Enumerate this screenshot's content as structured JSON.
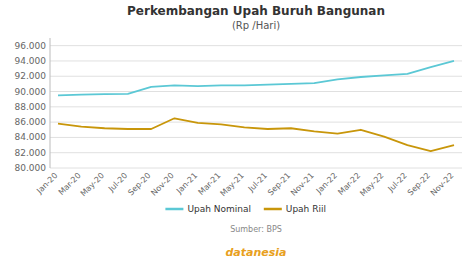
{
  "chart_data": {
    "type": "line",
    "title": "Perkembangan Upah Buruh Bangunan",
    "subtitle": "(Rp /Hari)",
    "annotations": [
      {
        "text": "Sumber: BPS"
      },
      {
        "text": "datanesia",
        "color": "#E8A020"
      }
    ],
    "categories": [
      "Jan-20",
      "Mar-20",
      "May-20",
      "Jul-20",
      "Sep-20",
      "Nov-20",
      "Jan-21",
      "Mar-21",
      "May-21",
      "Jul-21",
      "Sep-21",
      "Nov-21",
      "Jan-22",
      "Mar-22",
      "May-22",
      "Jul-22",
      "Sep-22",
      "Nov-22"
    ],
    "series": [
      {
        "name": "Upah Nominal",
        "color": "#5BC8D5",
        "values": [
          89500,
          89600,
          89650,
          89700,
          90600,
          90800,
          90700,
          90800,
          90800,
          90900,
          91000,
          91100,
          91600,
          91900,
          92100,
          92300,
          93200,
          94000
        ]
      },
      {
        "name": "Upah Riil",
        "color": "#C8960A",
        "values": [
          85800,
          85400,
          85200,
          85100,
          85100,
          86500,
          85900,
          85700,
          85300,
          85100,
          85200,
          84800,
          84500,
          85000,
          84100,
          83000,
          82200,
          83000
        ]
      }
    ],
    "ylim": [
      80000,
      97000
    ],
    "yticks": [
      {
        "value": 80000,
        "label": "80.000"
      },
      {
        "value": 82000,
        "label": "82.000"
      },
      {
        "value": 84000,
        "label": "84.000"
      },
      {
        "value": 86000,
        "label": "86.000"
      },
      {
        "value": 88000,
        "label": "88.000"
      },
      {
        "value": 90000,
        "label": "90.000"
      },
      {
        "value": 92000,
        "label": "92.000"
      },
      {
        "value": 94000,
        "label": "94.000"
      },
      {
        "value": 96000,
        "label": "96.000"
      }
    ],
    "grid": true,
    "legend": "bottom"
  }
}
